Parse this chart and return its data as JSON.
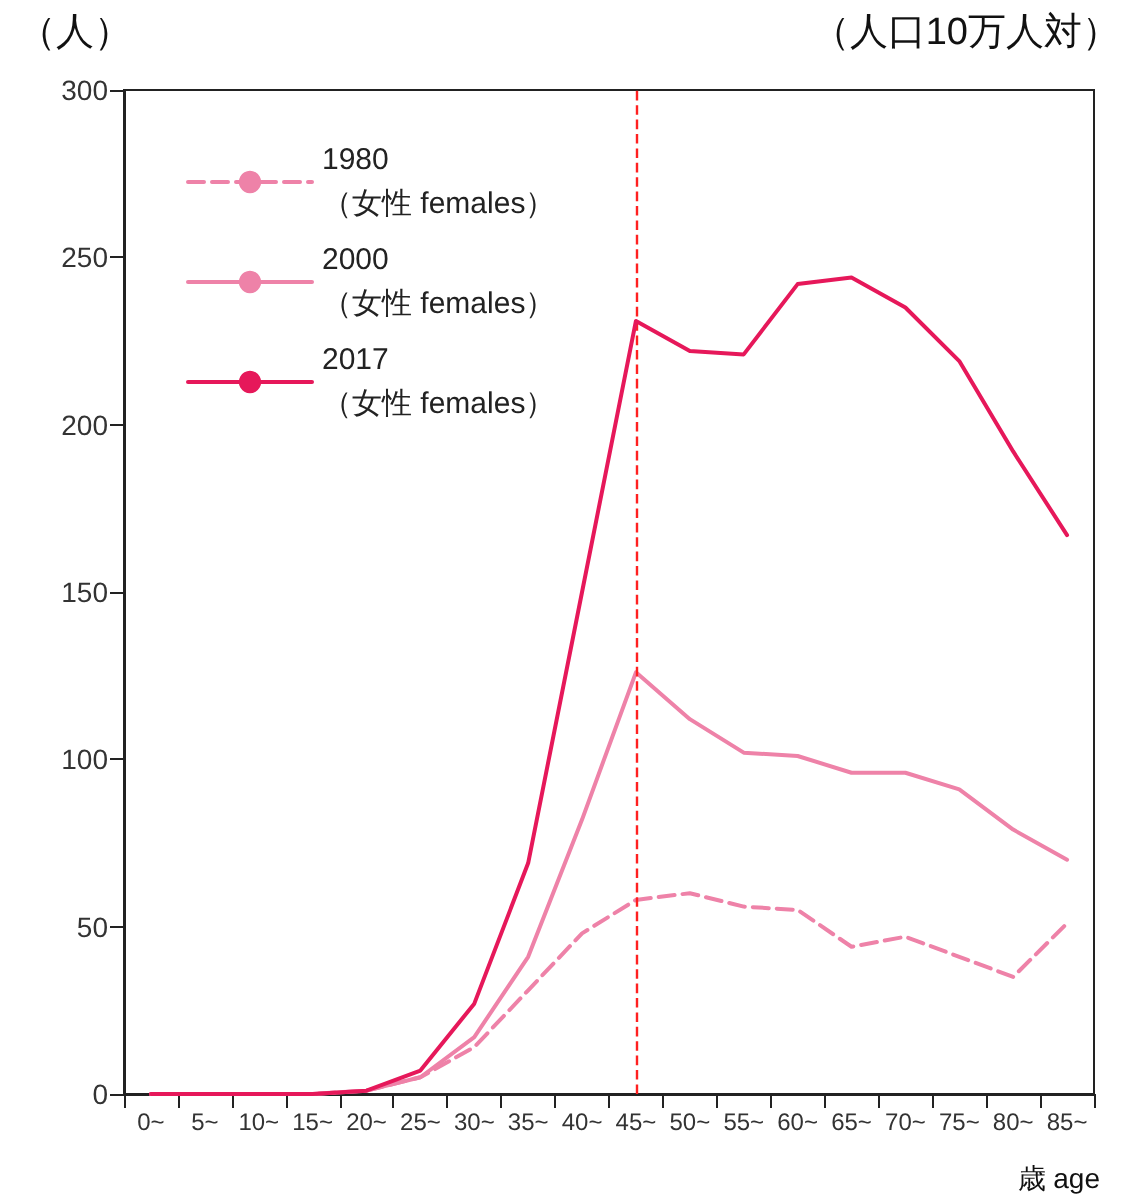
{
  "chart_data": {
    "type": "line",
    "ylabel": "（人）",
    "xlabel": "歳 age",
    "annotations": [
      "（人口10万人対）"
    ],
    "categories": [
      "0~",
      "5~",
      "10~",
      "15~",
      "20~",
      "25~",
      "30~",
      "35~",
      "40~",
      "45~",
      "50~",
      "55~",
      "60~",
      "65~",
      "70~",
      "75~",
      "80~",
      "85~"
    ],
    "series": [
      {
        "name": "1980\n（女性 females）",
        "color": "#ee82a8",
        "line_style": "dashed",
        "values": [
          0,
          0,
          0,
          0,
          1,
          5,
          14,
          31,
          48,
          58,
          60,
          56,
          55,
          44,
          47,
          41,
          35,
          51
        ]
      },
      {
        "name": "2000\n（女性 females）",
        "color": "#ee82a8",
        "line_style": "solid",
        "values": [
          0,
          0,
          0,
          0,
          1,
          5,
          17,
          41,
          82,
          126,
          112,
          102,
          101,
          96,
          96,
          91,
          79,
          70
        ]
      },
      {
        "name": "2017\n（女性 females）",
        "color": "#e6185a",
        "line_style": "solid",
        "values": [
          0,
          0,
          0,
          0,
          1,
          7,
          27,
          69,
          150,
          231,
          222,
          221,
          242,
          244,
          235,
          219,
          192,
          167
        ]
      }
    ],
    "ylim": [
      0,
      300
    ],
    "yticks": [
      0,
      50,
      100,
      150,
      200,
      250,
      300
    ],
    "grid": false,
    "legend": "top left",
    "marker": "none",
    "ref_lines": [
      {
        "axis": "x",
        "value": "45~",
        "color": "#ff2020",
        "line_style": "dashed"
      }
    ]
  }
}
